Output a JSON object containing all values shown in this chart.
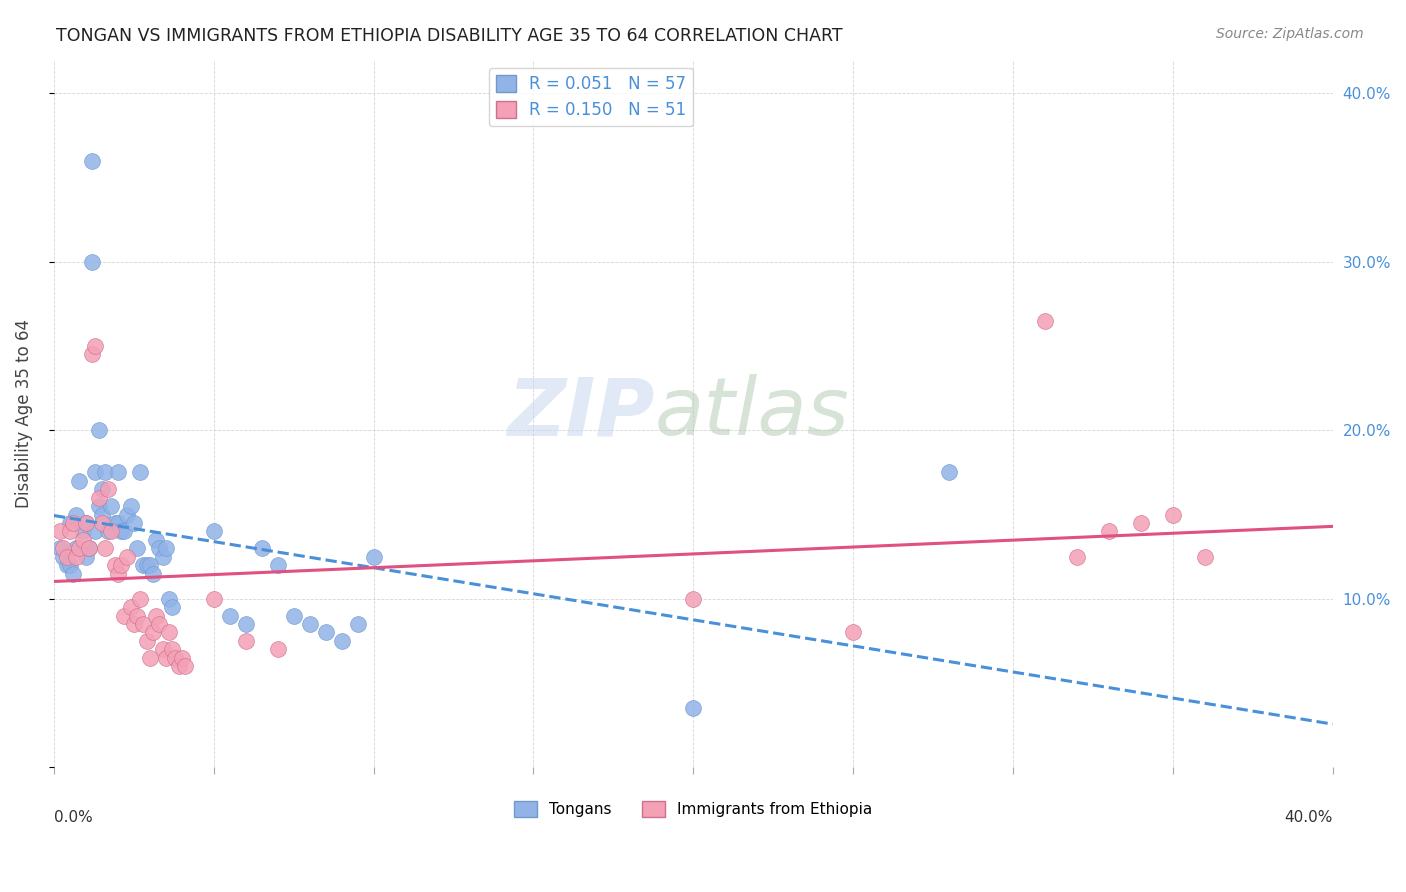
{
  "title": "TONGAN VS IMMIGRANTS FROM ETHIOPIA DISABILITY AGE 35 TO 64 CORRELATION CHART",
  "source": "Source: ZipAtlas.com",
  "ylabel": "Disability Age 35 to 64",
  "xlim": [
    0.0,
    0.4
  ],
  "ylim": [
    0.0,
    0.42
  ],
  "blue_color": "#91b3e8",
  "pink_color": "#f4a0b5",
  "blue_edge": "#7099cc",
  "pink_edge": "#d07090",
  "line_blue_color": "#4a90d9",
  "line_pink_color": "#e05080",
  "legend_label_blue": "R = 0.051   N = 57",
  "legend_label_pink": "R = 0.150   N = 51",
  "bottom_legend_blue": "Tongans",
  "bottom_legend_pink": "Immigrants from Ethiopia",
  "tongans_x": [
    0.002,
    0.003,
    0.004,
    0.005,
    0.005,
    0.006,
    0.007,
    0.007,
    0.008,
    0.009,
    0.01,
    0.01,
    0.011,
    0.012,
    0.012,
    0.013,
    0.013,
    0.014,
    0.014,
    0.015,
    0.015,
    0.016,
    0.017,
    0.018,
    0.019,
    0.02,
    0.02,
    0.021,
    0.022,
    0.023,
    0.024,
    0.025,
    0.026,
    0.027,
    0.028,
    0.029,
    0.03,
    0.031,
    0.032,
    0.033,
    0.034,
    0.035,
    0.036,
    0.037,
    0.05,
    0.055,
    0.06,
    0.065,
    0.07,
    0.075,
    0.08,
    0.085,
    0.09,
    0.095,
    0.1,
    0.2,
    0.28
  ],
  "tongans_y": [
    0.13,
    0.125,
    0.12,
    0.145,
    0.12,
    0.115,
    0.15,
    0.13,
    0.17,
    0.14,
    0.145,
    0.125,
    0.13,
    0.36,
    0.3,
    0.175,
    0.14,
    0.155,
    0.2,
    0.165,
    0.15,
    0.175,
    0.14,
    0.155,
    0.145,
    0.145,
    0.175,
    0.14,
    0.14,
    0.15,
    0.155,
    0.145,
    0.13,
    0.175,
    0.12,
    0.12,
    0.12,
    0.115,
    0.135,
    0.13,
    0.125,
    0.13,
    0.1,
    0.095,
    0.14,
    0.09,
    0.085,
    0.13,
    0.12,
    0.09,
    0.085,
    0.08,
    0.075,
    0.085,
    0.125,
    0.035,
    0.175
  ],
  "ethiopia_x": [
    0.002,
    0.003,
    0.004,
    0.005,
    0.006,
    0.007,
    0.008,
    0.009,
    0.01,
    0.011,
    0.012,
    0.013,
    0.014,
    0.015,
    0.016,
    0.017,
    0.018,
    0.019,
    0.02,
    0.021,
    0.022,
    0.023,
    0.024,
    0.025,
    0.026,
    0.027,
    0.028,
    0.029,
    0.03,
    0.031,
    0.032,
    0.033,
    0.034,
    0.035,
    0.036,
    0.037,
    0.038,
    0.039,
    0.04,
    0.041,
    0.05,
    0.06,
    0.07,
    0.2,
    0.25,
    0.31,
    0.32,
    0.33,
    0.34,
    0.35,
    0.36
  ],
  "ethiopia_y": [
    0.14,
    0.13,
    0.125,
    0.14,
    0.145,
    0.125,
    0.13,
    0.135,
    0.145,
    0.13,
    0.245,
    0.25,
    0.16,
    0.145,
    0.13,
    0.165,
    0.14,
    0.12,
    0.115,
    0.12,
    0.09,
    0.125,
    0.095,
    0.085,
    0.09,
    0.1,
    0.085,
    0.075,
    0.065,
    0.08,
    0.09,
    0.085,
    0.07,
    0.065,
    0.08,
    0.07,
    0.065,
    0.06,
    0.065,
    0.06,
    0.1,
    0.075,
    0.07,
    0.1,
    0.08,
    0.265,
    0.125,
    0.14,
    0.145,
    0.15,
    0.125
  ]
}
